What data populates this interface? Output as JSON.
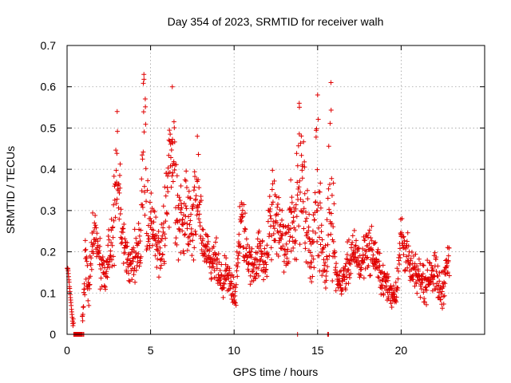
{
  "colors": {
    "points": "#e00000",
    "axes": "#000000",
    "grid": "#a0a0a0",
    "background": "#ffffff"
  },
  "chart_data": {
    "type": "scatter",
    "marker": "plus",
    "title": "Day 354 of 2023, SRMTID for receiver walh",
    "xlabel": "GPS time / hours",
    "ylabel": "SRMTID / TECUs",
    "xlim": [
      0,
      25
    ],
    "ylim": [
      0,
      0.7
    ],
    "xticks": [
      0,
      5,
      10,
      15,
      20
    ],
    "yticks": [
      0,
      0.1,
      0.2,
      0.3,
      0.4,
      0.5,
      0.6,
      0.7
    ],
    "xtick_labels": [
      "0",
      "5",
      "10",
      "15",
      "20"
    ],
    "ytick_labels": [
      "0",
      "0.1",
      "0.2",
      "0.3",
      "0.4",
      "0.5",
      "0.6",
      "0.7"
    ],
    "grid": true,
    "series": [
      {
        "name": "SRMTID",
        "approximate": true,
        "profile_x": [
          0,
          0.05,
          0.4,
          0.9,
          1.1,
          1.3,
          1.5,
          1.7,
          2.0,
          2.3,
          2.6,
          2.8,
          3.0,
          3.2,
          3.5,
          3.8,
          4.1,
          4.4,
          4.6,
          4.8,
          5.0,
          5.3,
          5.6,
          5.9,
          6.2,
          6.5,
          6.8,
          7.1,
          7.4,
          7.7,
          8.0,
          8.3,
          8.6,
          8.9,
          9.2,
          9.5,
          9.8,
          10.1,
          10.4,
          10.7,
          11.0,
          11.3,
          11.6,
          11.9,
          12.2,
          12.5,
          12.8,
          13.1,
          13.4,
          13.7,
          14.0,
          14.3,
          14.6,
          14.9,
          15.2,
          15.5,
          15.8,
          16.1,
          16.4,
          16.7,
          17.0,
          17.3,
          17.6,
          17.9,
          18.2,
          18.5,
          18.8,
          19.1,
          19.4,
          19.7,
          20.0,
          20.3,
          20.6,
          20.9,
          21.2,
          21.5,
          21.8,
          22.1,
          22.4,
          22.7,
          22.9
        ],
        "profile_y": [
          0.16,
          0.16,
          0.0,
          0.0,
          0.18,
          0.12,
          0.2,
          0.25,
          0.16,
          0.13,
          0.22,
          0.28,
          0.38,
          0.26,
          0.2,
          0.16,
          0.2,
          0.22,
          0.45,
          0.2,
          0.28,
          0.24,
          0.18,
          0.3,
          0.38,
          0.32,
          0.28,
          0.3,
          0.26,
          0.3,
          0.22,
          0.2,
          0.16,
          0.18,
          0.12,
          0.14,
          0.12,
          0.1,
          0.28,
          0.22,
          0.16,
          0.18,
          0.2,
          0.16,
          0.3,
          0.28,
          0.25,
          0.2,
          0.3,
          0.24,
          0.36,
          0.3,
          0.18,
          0.3,
          0.2,
          0.16,
          0.28,
          0.14,
          0.12,
          0.16,
          0.18,
          0.2,
          0.16,
          0.22,
          0.2,
          0.18,
          0.14,
          0.12,
          0.1,
          0.1,
          0.24,
          0.2,
          0.15,
          0.14,
          0.14,
          0.12,
          0.16,
          0.14,
          0.1,
          0.16,
          0.18
        ],
        "spread": [
          0.0,
          0.0,
          0.0,
          0.0,
          0.05,
          0.04,
          0.06,
          0.05,
          0.05,
          0.04,
          0.06,
          0.08,
          0.12,
          0.06,
          0.05,
          0.04,
          0.05,
          0.06,
          0.14,
          0.05,
          0.06,
          0.06,
          0.05,
          0.1,
          0.12,
          0.1,
          0.08,
          0.09,
          0.08,
          0.1,
          0.05,
          0.05,
          0.04,
          0.05,
          0.04,
          0.04,
          0.04,
          0.04,
          0.08,
          0.06,
          0.04,
          0.05,
          0.05,
          0.04,
          0.1,
          0.08,
          0.08,
          0.06,
          0.1,
          0.07,
          0.12,
          0.1,
          0.05,
          0.1,
          0.06,
          0.05,
          0.1,
          0.03,
          0.03,
          0.04,
          0.05,
          0.05,
          0.04,
          0.05,
          0.05,
          0.04,
          0.04,
          0.03,
          0.03,
          0.03,
          0.06,
          0.05,
          0.04,
          0.04,
          0.04,
          0.04,
          0.04,
          0.05,
          0.04,
          0.05,
          0.05
        ],
        "peaks_x": [
          3.0,
          4.6,
          6.3,
          7.8,
          13.9,
          15.0,
          15.8
        ],
        "peaks_y": [
          0.54,
          0.63,
          0.6,
          0.48,
          0.56,
          0.58,
          0.61
        ],
        "n_points": 1500
      }
    ]
  }
}
